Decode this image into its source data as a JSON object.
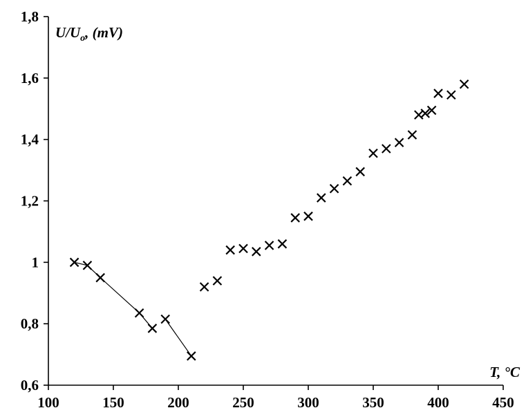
{
  "chart_data": {
    "type": "scatter",
    "xlabel": "T, °C",
    "ylabel_main": "U/U",
    "ylabel_sub": "o",
    "ylabel_suffix": ", (mV)",
    "xlim": [
      100,
      450
    ],
    "ylim": [
      0.6,
      1.8
    ],
    "x_ticks": [
      100,
      150,
      200,
      250,
      300,
      350,
      400,
      450
    ],
    "x_tick_labels": [
      "100",
      "150",
      "200",
      "250",
      "300",
      "350",
      "400",
      "450"
    ],
    "y_ticks": [
      0.6,
      0.8,
      1.0,
      1.2,
      1.4,
      1.6,
      1.8
    ],
    "y_tick_labels": [
      "0,6",
      "0,8",
      "1",
      "1,2",
      "1,4",
      "1,6",
      "1,8"
    ],
    "grid": false,
    "marker": "x",
    "series": [
      {
        "connected": true,
        "points": [
          [
            120,
            1.0
          ],
          [
            130,
            0.99
          ],
          [
            140,
            0.95
          ],
          [
            170,
            0.835
          ],
          [
            180,
            0.785
          ]
        ]
      },
      {
        "connected": true,
        "points": [
          [
            190,
            0.815
          ],
          [
            210,
            0.695
          ]
        ]
      },
      {
        "connected": false,
        "points": [
          [
            220,
            0.92
          ],
          [
            230,
            0.94
          ],
          [
            240,
            1.04
          ],
          [
            250,
            1.045
          ],
          [
            260,
            1.035
          ],
          [
            270,
            1.055
          ],
          [
            280,
            1.06
          ],
          [
            290,
            1.145
          ],
          [
            300,
            1.15
          ],
          [
            310,
            1.21
          ],
          [
            320,
            1.24
          ],
          [
            330,
            1.265
          ],
          [
            340,
            1.295
          ],
          [
            350,
            1.355
          ],
          [
            360,
            1.37
          ],
          [
            370,
            1.39
          ],
          [
            380,
            1.415
          ],
          [
            385,
            1.48
          ],
          [
            390,
            1.485
          ],
          [
            395,
            1.495
          ],
          [
            400,
            1.55
          ],
          [
            410,
            1.545
          ],
          [
            420,
            1.58
          ]
        ]
      }
    ]
  }
}
